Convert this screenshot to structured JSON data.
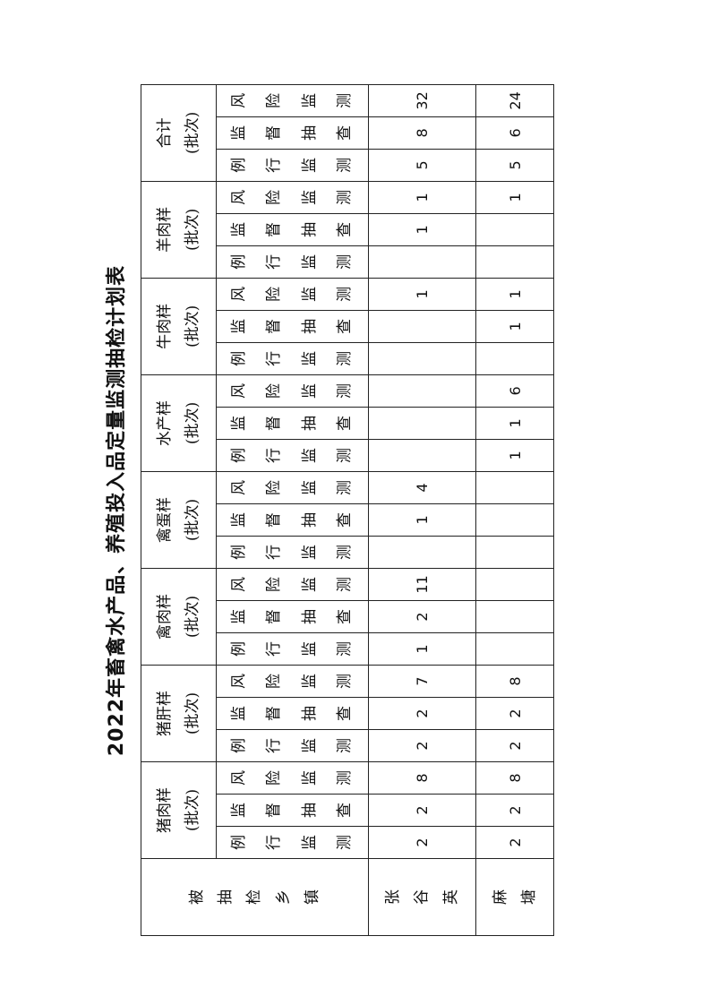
{
  "title": "2022年畜禽水产品、养殖投入品定量监测抽检计划表",
  "header": {
    "town_label": "被抽检乡镇",
    "unit": "(批次)",
    "groups": [
      "猪肉样",
      "猪肝样",
      "禽肉样",
      "禽蛋样",
      "水产样",
      "牛肉样",
      "羊肉样",
      "合计"
    ],
    "subcolumns": [
      "例行监测",
      "监督抽查",
      "风险监测"
    ]
  },
  "rows": [
    {
      "town": "张谷英",
      "values": [
        "2",
        "2",
        "8",
        "2",
        "2",
        "7",
        "1",
        "2",
        "11",
        "",
        "1",
        "4",
        "",
        "",
        "",
        "",
        "",
        "1",
        "",
        "1",
        "1",
        "5",
        "8",
        "32"
      ]
    },
    {
      "town": "麻塘",
      "values": [
        "2",
        "2",
        "8",
        "2",
        "2",
        "8",
        "",
        "",
        "",
        "",
        "",
        "",
        "1",
        "1",
        "6",
        "",
        "1",
        "1",
        "",
        "",
        "1",
        "5",
        "6",
        "24"
      ]
    }
  ]
}
